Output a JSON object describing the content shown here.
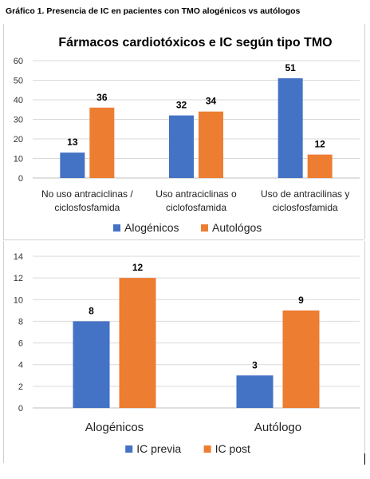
{
  "figure_caption": "Gráfico 1. Presencia de IC en pacientes con TMO alogénicos vs autólogos",
  "colors": {
    "blue": "#4472C4",
    "orange": "#ED7D31",
    "grid": "#d9d9d9"
  },
  "chart_data": [
    {
      "type": "bar",
      "title": "Fármacos cardiotóxicos e IC según tipo TMO",
      "xlabel": "",
      "ylabel": "",
      "categories": [
        [
          "No uso antraciclinas /",
          "ciclosfosfamida"
        ],
        [
          "Uso antraciclinas o",
          "ciclofosfamida"
        ],
        [
          "Uso de antracilinas y",
          "ciclosfosfamida"
        ]
      ],
      "series": [
        {
          "name": "Alogénicos",
          "values": [
            13,
            32,
            51
          ],
          "color": "#4472C4"
        },
        {
          "name": "Autológos",
          "values": [
            36,
            34,
            12
          ],
          "color": "#ED7D31"
        }
      ],
      "ylim": [
        0,
        60
      ],
      "yticks": [
        0,
        10,
        20,
        30,
        40,
        50,
        60
      ],
      "grid": true,
      "legend": "bottom"
    },
    {
      "type": "bar",
      "title": "",
      "xlabel": "",
      "ylabel": "",
      "categories": [
        [
          "Alogénicos"
        ],
        [
          "Autólogo"
        ]
      ],
      "series": [
        {
          "name": "IC previa",
          "values": [
            8,
            3
          ],
          "color": "#4472C4"
        },
        {
          "name": "IC post",
          "values": [
            12,
            9
          ],
          "color": "#ED7D31"
        }
      ],
      "ylim": [
        0,
        14
      ],
      "yticks": [
        0,
        2,
        4,
        6,
        8,
        10,
        12,
        14
      ],
      "grid": true,
      "legend": "bottom"
    }
  ]
}
